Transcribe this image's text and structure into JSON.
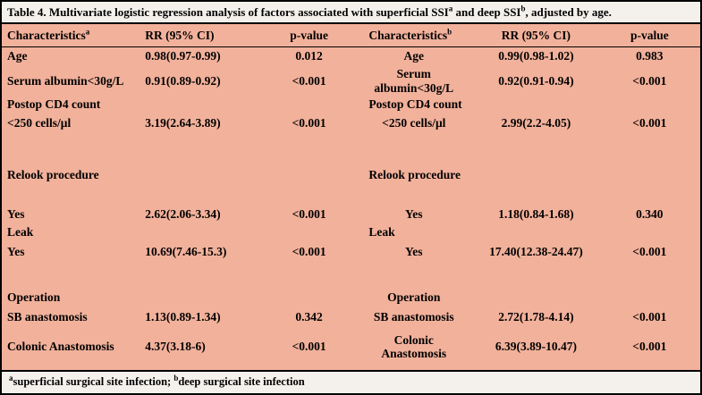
{
  "title": {
    "part1": "Table 4. Multivariate logistic regression analysis of factors associated with superficial SSI",
    "sup1": "a",
    "part2": " and deep SSI",
    "sup2": "b",
    "part3": ", adjusted by age."
  },
  "header": {
    "col1": {
      "label": "Characteristics",
      "sup": "a"
    },
    "col2": "RR (95% CI)",
    "col3": "p-value",
    "col4": {
      "label": "Characteristics",
      "sup": "b"
    },
    "col5": "RR (95% CI)",
    "col6": "p-value"
  },
  "table": {
    "rows": [
      {
        "cells": [
          "Age",
          "0.98(0.97-0.99)",
          "0.012",
          "Age",
          "0.99(0.98-1.02)",
          "0.983"
        ]
      },
      {
        "cells": [
          "Serum albumin<30g/L",
          "0.91(0.89-0.92)",
          "<0.001",
          "Serum albumin<30g/L",
          "0.92(0.91-0.94)",
          "<0.001"
        ]
      },
      {
        "cells": [
          "Postop CD4 count",
          "",
          "",
          "Postop CD4 count",
          "",
          ""
        ]
      },
      {
        "cells": [
          "<250 cells/μl",
          "3.19(2.64-3.89)",
          "<0.001",
          "<250 cells/μl",
          "2.99(2.2-4.05)",
          "<0.001"
        ]
      },
      {
        "cells": [
          "",
          "",
          "",
          "",
          "",
          ""
        ]
      },
      {
        "cells": [
          "Relook procedure",
          "",
          "",
          "Relook procedure",
          "",
          ""
        ]
      },
      {
        "cells": [
          "",
          "",
          "",
          "",
          "",
          ""
        ]
      },
      {
        "cells": [
          "Yes",
          "2.62(2.06-3.34)",
          "<0.001",
          "Yes",
          "1.18(0.84-1.68)",
          "0.340"
        ]
      },
      {
        "cells": [
          "Leak",
          "",
          "",
          "Leak",
          "",
          ""
        ]
      },
      {
        "cells": [
          "Yes",
          "10.69(7.46-15.3)",
          "<0.001",
          "Yes",
          "17.40(12.38-24.47)",
          "<0.001"
        ]
      },
      {
        "cells": [
          "",
          "",
          "",
          "",
          "",
          ""
        ]
      },
      {
        "cells": [
          "Operation",
          "",
          "",
          "Operation",
          "",
          ""
        ]
      },
      {
        "cells": [
          "SB anastomosis",
          "1.13(0.89-1.34)",
          "0.342",
          "SB anastomosis",
          "2.72(1.78-4.14)",
          "<0.001"
        ]
      },
      {
        "cells": [
          "Colonic Anastomosis",
          "4.37(3.18-6)",
          "<0.001",
          "Colonic Anastomosis",
          "6.39(3.89-10.47)",
          "<0.001"
        ]
      }
    ]
  },
  "footnote": {
    "sup_a": "a",
    "text_a": "superficial surgical site infection; ",
    "sup_b": "b",
    "text_b": "deep surgical site infection"
  },
  "colors": {
    "table_background": "#f2b19b",
    "panel_background": "#f4f1ec",
    "border": "#000000",
    "text": "#000000"
  }
}
